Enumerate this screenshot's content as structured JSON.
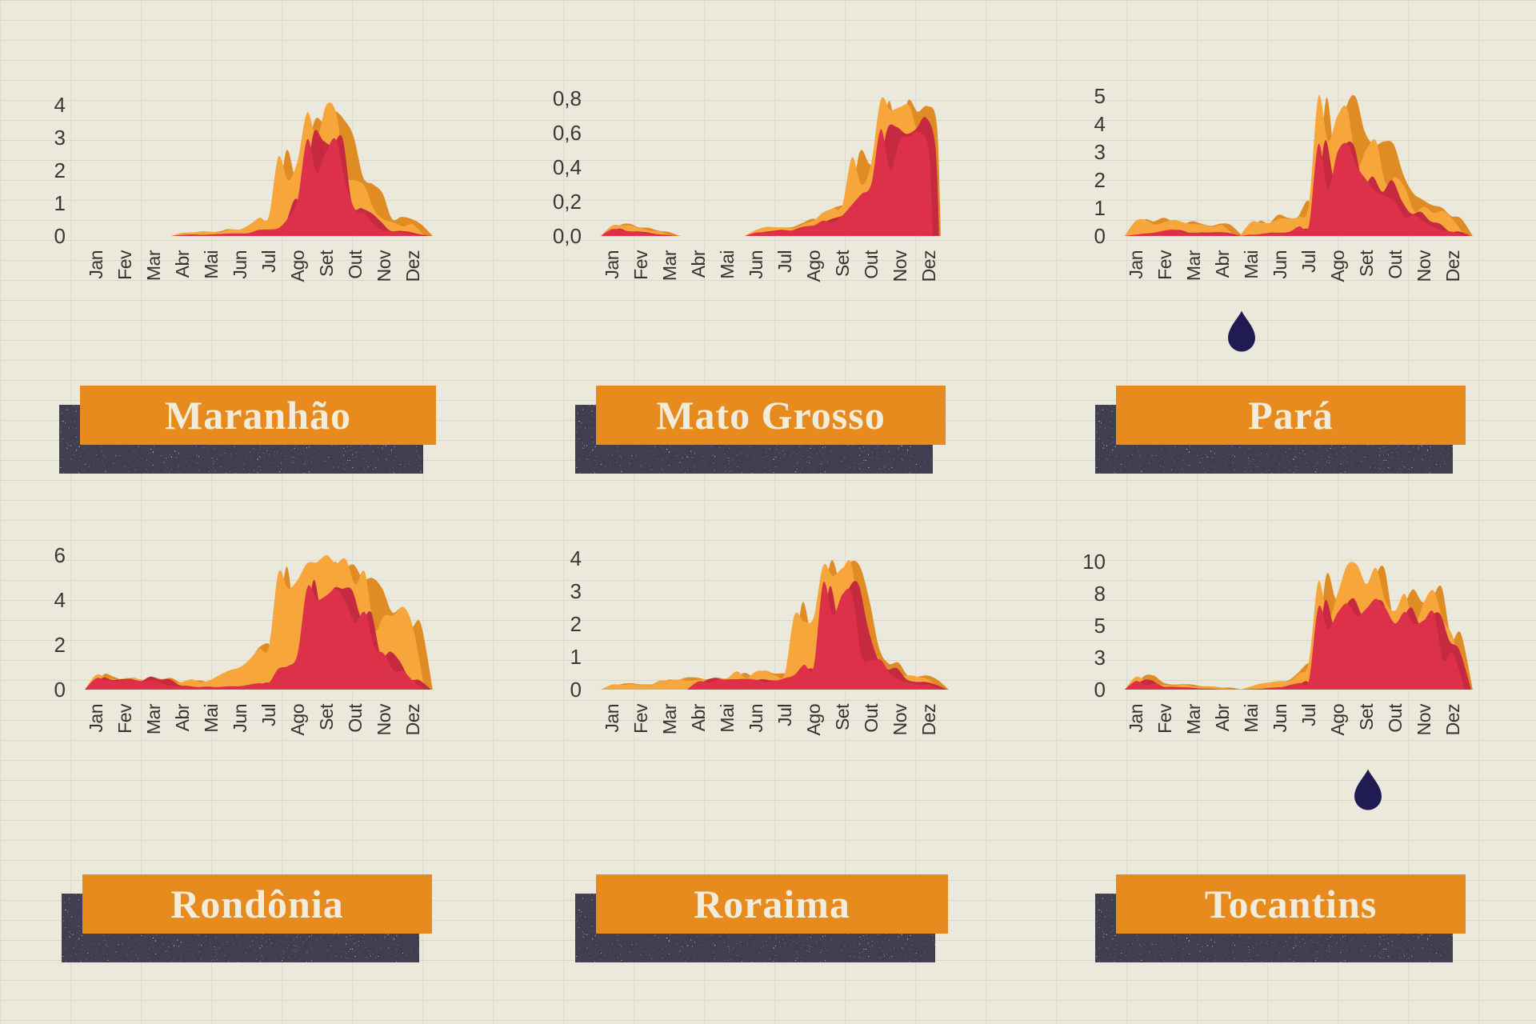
{
  "colors": {
    "paper": "#ebe9dc",
    "grid_line": "#d6d3c2",
    "flame_orange": "#f7a63c",
    "flame_orange_dark": "#e08c25",
    "flame_red": "#dd3049",
    "flame_red_dark": "#c62a40",
    "banner_orange": "#e88b1e",
    "banner_text": "#f2ecda",
    "axis_text": "#3a3834",
    "drop_navy": "#201b52",
    "shadow_speckle": "#111111"
  },
  "icons": {
    "water_drop_color": "#201b52",
    "water_drops": [
      {
        "name": "water-drop-icon",
        "position": "below-para-chart"
      },
      {
        "name": "water-drop-icon",
        "position": "below-tocantins-chart"
      }
    ]
  },
  "chart_data": [
    {
      "title": "Maranhão",
      "type": "area",
      "categories": [
        "Jan",
        "Fev",
        "Mar",
        "Abr",
        "Mai",
        "Jun",
        "Jul",
        "Ago",
        "Set",
        "Out",
        "Nov",
        "Dez"
      ],
      "ylim": [
        0,
        4
      ],
      "yticks": {
        "labels": [
          "4",
          "3",
          "2",
          "1",
          "0"
        ],
        "values": [
          4,
          3,
          2,
          1,
          0
        ]
      },
      "grid": false,
      "legend": "none",
      "series": [
        {
          "name": "outer-flame",
          "color": "#f7a63c",
          "values": [
            null,
            null,
            null,
            0.1,
            0.13,
            0.2,
            0.6,
            2.3,
            4.0,
            1.7,
            0.5,
            0.35
          ],
          "segments": [
            [
              3,
              11
            ]
          ],
          "end": "taper"
        },
        {
          "name": "inner-flame",
          "color": "#dd3049",
          "values": [
            null,
            null,
            null,
            0.03,
            0.05,
            0.07,
            0.2,
            1.1,
            2.6,
            0.8,
            0.15,
            0.05
          ],
          "segments": [
            [
              3,
              11
            ]
          ],
          "end": "taper"
        }
      ]
    },
    {
      "title": "Mato Grosso",
      "type": "area",
      "categories": [
        "Jan",
        "Fev",
        "Mar",
        "Abr",
        "Mai",
        "Jun",
        "Jul",
        "Ago",
        "Set",
        "Out",
        "Nov",
        "Dez"
      ],
      "ylim": [
        0,
        0.8
      ],
      "yticks": {
        "labels": [
          "0,8",
          "0,6",
          "0,4",
          "0,2",
          "0,0"
        ],
        "values": [
          0.8,
          0.6,
          0.4,
          0.2,
          0
        ]
      },
      "grid": false,
      "legend": "none",
      "series": [
        {
          "name": "outer-flame",
          "color": "#f7a63c",
          "values": [
            0.06,
            0.045,
            0.005,
            null,
            null,
            0.035,
            0.05,
            0.09,
            0.18,
            0.42,
            0.75,
            0.62
          ],
          "segments": [
            [
              0,
              2
            ],
            [
              5,
              11
            ]
          ],
          "end": "cliff"
        },
        {
          "name": "inner-flame",
          "color": "#dd3049",
          "values": [
            0.04,
            0.02,
            0.0,
            null,
            null,
            0.02,
            0.03,
            0.06,
            0.12,
            0.3,
            0.56,
            0.5
          ],
          "segments": [
            [
              0,
              2
            ],
            [
              5,
              11
            ]
          ],
          "end": "cliff"
        }
      ]
    },
    {
      "title": "Pará",
      "type": "area",
      "categories": [
        "Jan",
        "Fev",
        "Mar",
        "Abr",
        "Mai",
        "Jun",
        "Jul",
        "Ago",
        "Set",
        "Out",
        "Nov",
        "Dez"
      ],
      "ylim": [
        0,
        5
      ],
      "yticks": {
        "labels": [
          "5",
          "4",
          "3",
          "2",
          "1",
          "0"
        ],
        "values": [
          5,
          4,
          3,
          2,
          1,
          0
        ]
      },
      "grid": false,
      "legend": "none",
      "series": [
        {
          "name": "outer-flame",
          "color": "#f7a63c",
          "values": [
            0.55,
            0.5,
            0.42,
            0.38,
            0.5,
            0.62,
            1.1,
            4.3,
            3.1,
            2.1,
            1.05,
            0.6
          ],
          "segments": [
            [
              0,
              3
            ],
            [
              4,
              11
            ]
          ],
          "end": "taper"
        },
        {
          "name": "inner-flame",
          "color": "#dd3049",
          "values": [
            0.05,
            0.2,
            0.12,
            0.1,
            0.05,
            0.12,
            0.35,
            3.0,
            2.0,
            1.2,
            0.5,
            0.15
          ],
          "segments": [
            [
              0,
              3
            ],
            [
              4,
              11
            ]
          ],
          "end": "taper"
        }
      ]
    },
    {
      "title": "Rondônia",
      "type": "area",
      "categories": [
        "Jan",
        "Fev",
        "Mar",
        "Abr",
        "Mai",
        "Jun",
        "Jul",
        "Ago",
        "Set",
        "Out",
        "Nov",
        "Dez"
      ],
      "ylim": [
        0,
        6
      ],
      "yticks": {
        "labels": [
          "6",
          "4",
          "2",
          "0"
        ],
        "values": [
          6,
          4,
          2,
          0
        ]
      },
      "grid": false,
      "legend": "none",
      "series": [
        {
          "name": "outer-flame",
          "color": "#f7a63c",
          "values": [
            0.65,
            0.5,
            0.45,
            0.35,
            0.45,
            1.0,
            1.9,
            4.9,
            6.0,
            4.7,
            3.3,
            2.8
          ],
          "segments": [
            [
              0,
              11
            ]
          ],
          "end": "taper"
        },
        {
          "name": "inner-flame",
          "color": "#dd3049",
          "values": [
            0.5,
            0.45,
            0.42,
            0.15,
            0.1,
            0.15,
            0.3,
            1.6,
            4.2,
            3.0,
            1.6,
            0.4
          ],
          "segments": [
            [
              0,
              11
            ]
          ],
          "end": "taper"
        }
      ]
    },
    {
      "title": "Roraima",
      "type": "area",
      "categories": [
        "Jan",
        "Fev",
        "Mar",
        "Abr",
        "Mai",
        "Jun",
        "Jul",
        "Ago",
        "Set",
        "Out",
        "Nov",
        "Dez"
      ],
      "ylim": [
        0,
        4
      ],
      "yticks": {
        "labels": [
          "4",
          "3",
          "2",
          "1",
          "0"
        ],
        "values": [
          4,
          3,
          2,
          1,
          0
        ]
      },
      "grid": false,
      "legend": "none",
      "series": [
        {
          "name": "outer-flame",
          "color": "#f7a63c",
          "values": [
            0.15,
            0.15,
            0.28,
            0.3,
            0.35,
            0.55,
            0.5,
            2.2,
            3.7,
            1.2,
            0.4,
            0.3
          ],
          "segments": [
            [
              0,
              11
            ]
          ],
          "end": "taper"
        },
        {
          "name": "inner-flame",
          "color": "#dd3049",
          "values": [
            null,
            null,
            null,
            0.25,
            0.3,
            0.3,
            0.35,
            0.7,
            2.9,
            0.9,
            0.3,
            0.15
          ],
          "segments": [
            [
              3,
              11
            ]
          ],
          "end": "taper"
        }
      ]
    },
    {
      "title": "Tocantins",
      "type": "area",
      "categories": [
        "Jan",
        "Fev",
        "Mar",
        "Abr",
        "Mai",
        "Jun",
        "Jul",
        "Ago",
        "Set",
        "Out",
        "Nov",
        "Dez"
      ],
      "ylim": [
        0,
        10
      ],
      "yticks": {
        "labels": [
          "10",
          "8",
          "5",
          "3",
          "0"
        ],
        "values": [
          10,
          8,
          5,
          3,
          0
        ]
      },
      "grid": false,
      "legend": "none",
      "series": [
        {
          "name": "outer-flame",
          "color": "#f7a63c",
          "values": [
            1.2,
            0.45,
            0.3,
            0.18,
            0.3,
            0.8,
            2.6,
            8.0,
            8.6,
            6.4,
            7.2,
            4.3
          ],
          "segments": [
            [
              0,
              3
            ],
            [
              4,
              11
            ]
          ],
          "end": "taper"
        },
        {
          "name": "inner-flame",
          "color": "#dd3049",
          "values": [
            0.8,
            0.25,
            0.1,
            0.03,
            0.05,
            0.2,
            0.8,
            6.2,
            6.6,
            5.2,
            5.5,
            3.3
          ],
          "segments": [
            [
              0,
              3
            ],
            [
              4,
              11
            ]
          ],
          "end": "taper"
        }
      ]
    }
  ]
}
